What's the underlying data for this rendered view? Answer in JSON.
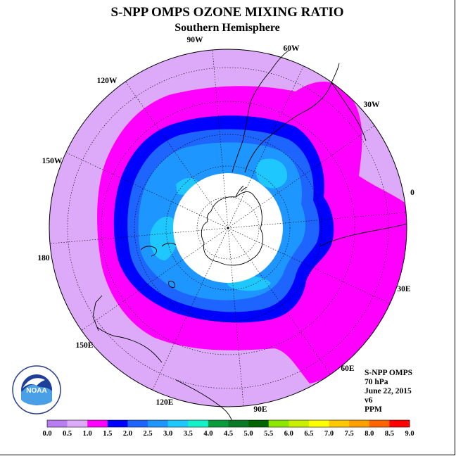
{
  "header": {
    "title": "S-NPP OMPS OZONE MIXING RATIO",
    "subtitle": "Southern Hemisphere"
  },
  "longitude_labels": [
    "90W",
    "60W",
    "30W",
    "0",
    "30E",
    "60E",
    "90E",
    "120E",
    "150E",
    "180",
    "150W",
    "120W"
  ],
  "info": {
    "instrument": "S-NPP OMPS",
    "pressure": "70 hPa",
    "date": "June 22, 2015",
    "version": "v6",
    "units": "PPM"
  },
  "logo": {
    "icon": "noaa-logo-icon",
    "text": "NOAA"
  },
  "colorbar": {
    "ticks": [
      "0.0",
      "0.5",
      "1.0",
      "1.5",
      "2.0",
      "2.5",
      "3.0",
      "3.5",
      "4.0",
      "4.5",
      "5.0",
      "5.5",
      "6.0",
      "6.5",
      "7.0",
      "7.5",
      "8.0",
      "8.5",
      "9.0"
    ],
    "colors": [
      "#b87ef0",
      "#dcaaf8",
      "#ff00ff",
      "#0000ff",
      "#1e64ff",
      "#1e96ff",
      "#1ec8ff",
      "#14f0c8",
      "#0a9b3c",
      "#0a7a28",
      "#006400",
      "#8ce600",
      "#c8f000",
      "#ffff00",
      "#ffc800",
      "#ffa000",
      "#ff6400",
      "#ff0000",
      "#8b5a2b"
    ]
  },
  "chart_data": {
    "type": "heatmap",
    "projection": "south polar stereographic",
    "variable": "ozone mixing ratio",
    "units": "PPM",
    "level": "70 hPa",
    "date": "June 22, 2015",
    "missing_region": "polar night (white, no data)",
    "contour_levels": [
      0.0,
      0.5,
      1.0,
      1.5,
      2.0,
      2.5,
      3.0,
      3.5,
      4.0,
      4.5,
      5.0,
      5.5,
      6.0,
      6.5,
      7.0,
      7.5,
      8.0,
      8.5,
      9.0
    ],
    "bands": [
      {
        "range": [
          0.5,
          1.0
        ],
        "color": "#dcaaf8",
        "region": "outer mid-latitudes"
      },
      {
        "range": [
          1.0,
          1.5
        ],
        "color": "#ff00ff",
        "region": "ring around vortex, extended toward 0-60E"
      },
      {
        "range": [
          1.5,
          2.0
        ],
        "color": "#0000ff",
        "region": "vortex edge ring"
      },
      {
        "range": [
          2.0,
          2.5
        ],
        "color": "#1e64ff",
        "region": "inner vortex"
      },
      {
        "range": [
          2.5,
          3.0
        ],
        "color": "#1e96ff",
        "region": "inner vortex"
      },
      {
        "range": [
          3.0,
          3.5
        ],
        "color": "#1ec8ff",
        "region": "small patches near polar night edge"
      }
    ]
  }
}
